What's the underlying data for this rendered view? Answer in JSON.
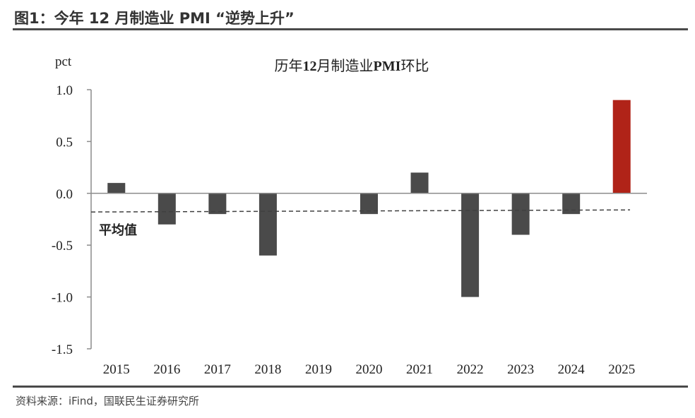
{
  "figure": {
    "heading": "图1：今年 12 月制造业 PMI “逆势上升”",
    "source": "资料来源：iFind，国联民生证券研究所"
  },
  "chart_data": {
    "type": "bar",
    "title_parts": [
      "历年",
      "12",
      "月制造业",
      "PMI",
      "环比"
    ],
    "ylabel": "pct",
    "xlabel": "",
    "categories": [
      "2015",
      "2016",
      "2017",
      "2018",
      "2019",
      "2020",
      "2021",
      "2022",
      "2023",
      "2024",
      "2025"
    ],
    "values": [
      0.1,
      -0.3,
      -0.2,
      -0.6,
      0.0,
      -0.2,
      0.2,
      -1.0,
      -0.4,
      -0.2,
      0.9
    ],
    "ylim": [
      -1.5,
      1.0
    ],
    "yticks": [
      1.0,
      0.5,
      0.0,
      -0.5,
      -1.0,
      -1.5
    ],
    "ytick_labels": [
      "1.0",
      "0.5",
      "0.0",
      "-0.5",
      "-1.0",
      "-1.5"
    ],
    "average": {
      "label": "平均值",
      "start_value": -0.18,
      "end_value": -0.16
    },
    "colors": {
      "bar": "#4a4a4a",
      "highlight_bar": "#b02318",
      "highlight_category": "2025",
      "average_line": "#404040",
      "axis": "#8c8c8c"
    },
    "grid": false,
    "legend": "none"
  }
}
